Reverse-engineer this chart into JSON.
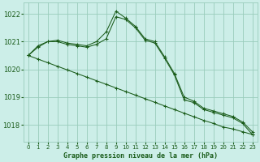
{
  "title": "Graphe pression niveau de la mer (hPa)",
  "background_color": "#cceee8",
  "grid_color": "#99ccbb",
  "line_color": "#1a5c1a",
  "marker_color": "#1a5c1a",
  "xlim": [
    -0.5,
    23.5
  ],
  "ylim": [
    1017.4,
    1022.4
  ],
  "yticks": [
    1018,
    1019,
    1020,
    1021,
    1022
  ],
  "xticks": [
    0,
    1,
    2,
    3,
    4,
    5,
    6,
    7,
    8,
    9,
    10,
    11,
    12,
    13,
    14,
    15,
    16,
    17,
    18,
    19,
    20,
    21,
    22,
    23
  ],
  "series": [
    {
      "x": [
        0,
        1,
        2,
        3,
        4,
        5,
        6,
        7,
        8,
        9,
        10,
        11,
        12,
        13,
        14,
        15,
        16,
        17,
        18,
        19,
        20,
        21,
        22,
        23
      ],
      "y": [
        1020.5,
        1020.85,
        1021.0,
        1021.05,
        1020.95,
        1020.9,
        1020.85,
        1021.0,
        1021.35,
        1022.1,
        1021.85,
        1021.55,
        1021.1,
        1021.0,
        1020.45,
        1019.85,
        1019.0,
        1018.85,
        1018.6,
        1018.5,
        1018.4,
        1018.3,
        1018.1,
        1017.75
      ]
    },
    {
      "x": [
        0,
        1,
        2,
        3,
        4,
        5,
        6,
        7,
        8,
        9,
        10,
        11,
        12,
        13,
        14,
        15,
        16,
        17,
        18,
        19,
        20,
        21,
        22,
        23
      ],
      "y": [
        1020.5,
        1020.8,
        1021.0,
        1021.0,
        1020.9,
        1020.85,
        1020.8,
        1020.9,
        1021.1,
        1021.9,
        1021.8,
        1021.5,
        1021.05,
        1020.95,
        1020.4,
        1019.8,
        1018.9,
        1018.8,
        1018.55,
        1018.45,
        1018.35,
        1018.25,
        1018.05,
        1017.65
      ]
    },
    {
      "x": [
        0,
        1,
        2,
        3,
        4,
        5,
        6,
        7,
        8,
        9,
        10,
        11,
        12,
        13,
        14,
        15,
        16,
        17,
        18,
        19,
        20,
        21,
        22,
        23
      ],
      "y": [
        1020.5,
        1020.37,
        1020.24,
        1020.11,
        1019.98,
        1019.85,
        1019.72,
        1019.59,
        1019.46,
        1019.33,
        1019.2,
        1019.07,
        1018.94,
        1018.81,
        1018.68,
        1018.55,
        1018.42,
        1018.29,
        1018.16,
        1018.05,
        1017.92,
        1017.85,
        1017.75,
        1017.65
      ]
    }
  ]
}
